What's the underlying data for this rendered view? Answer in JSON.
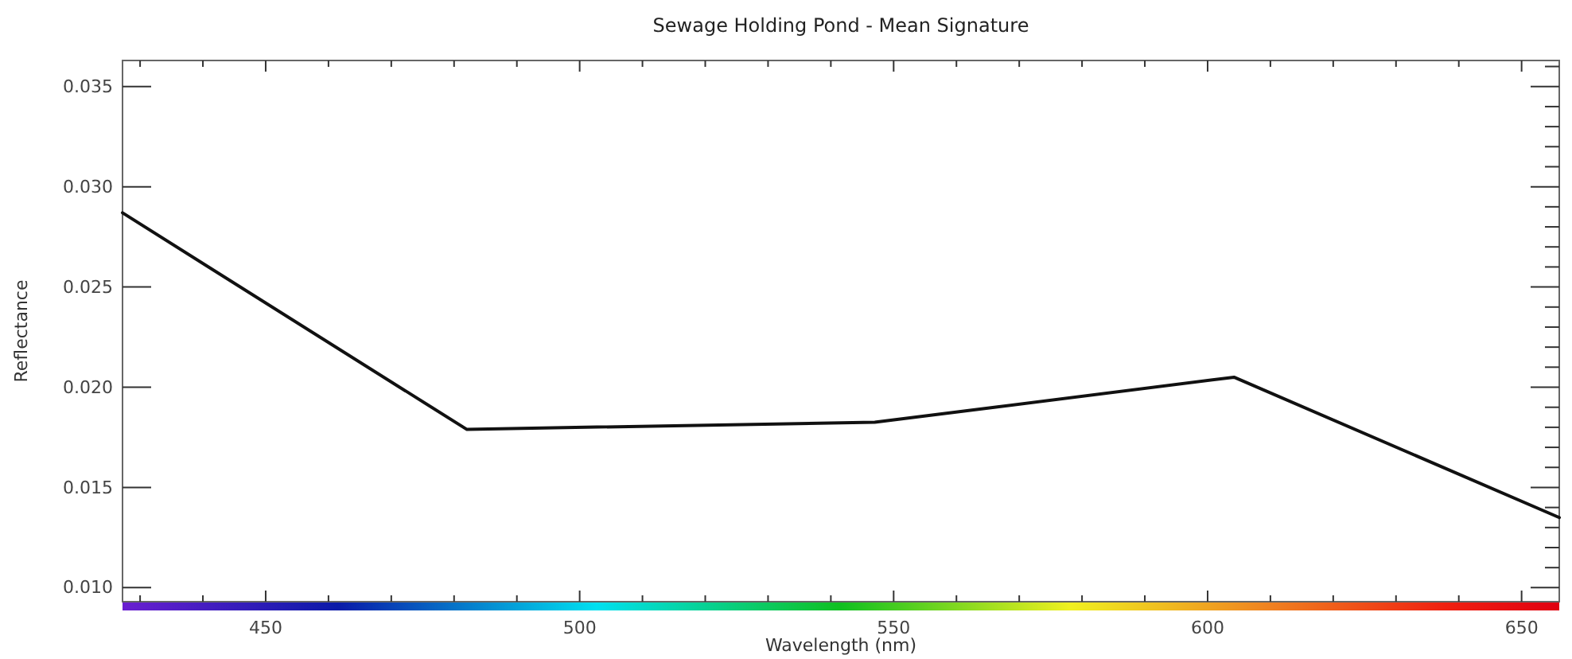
{
  "chart_data": {
    "type": "line",
    "title": "Sewage Holding Pond - Mean Signature",
    "xlabel": "Wavelength (nm)",
    "ylabel": "Reflectance",
    "x": [
      427.2,
      482,
      547,
      604.2,
      656
    ],
    "series": [
      {
        "color": "#111111",
        "values": [
          0.0287,
          0.0179,
          0.01825,
          0.0205,
          0.0135
        ]
      }
    ],
    "xlim": [
      427.2,
      656
    ],
    "ylim": [
      0.0093,
      0.0363
    ],
    "xticks": [
      {
        "value": 430,
        "label": null
      },
      {
        "value": 440,
        "label": null
      },
      450,
      {
        "value": 460,
        "label": null
      },
      {
        "value": 470,
        "label": null
      },
      {
        "value": 480,
        "label": null
      },
      {
        "value": 490,
        "label": null
      },
      500,
      {
        "value": 510,
        "label": null
      },
      {
        "value": 520,
        "label": null
      },
      {
        "value": 530,
        "label": null
      },
      {
        "value": 540,
        "label": null
      },
      550,
      {
        "value": 560,
        "label": null
      },
      {
        "value": 570,
        "label": null
      },
      {
        "value": 580,
        "label": null
      },
      {
        "value": 590,
        "label": null
      },
      600,
      {
        "value": 610,
        "label": null
      },
      {
        "value": 620,
        "label": null
      },
      {
        "value": 630,
        "label": null
      },
      {
        "value": 640,
        "label": null
      },
      650
    ],
    "yticks": [
      {
        "value": 0.01,
        "label": "0.010"
      },
      {
        "value": 0.015,
        "label": "0.015"
      },
      {
        "value": 0.02,
        "label": "0.020"
      },
      {
        "value": 0.025,
        "label": "0.025"
      },
      {
        "value": 0.03,
        "label": "0.030"
      },
      {
        "value": 0.035,
        "label": "0.035"
      }
    ],
    "grid": false,
    "marker": "none",
    "line_style": "solid"
  }
}
